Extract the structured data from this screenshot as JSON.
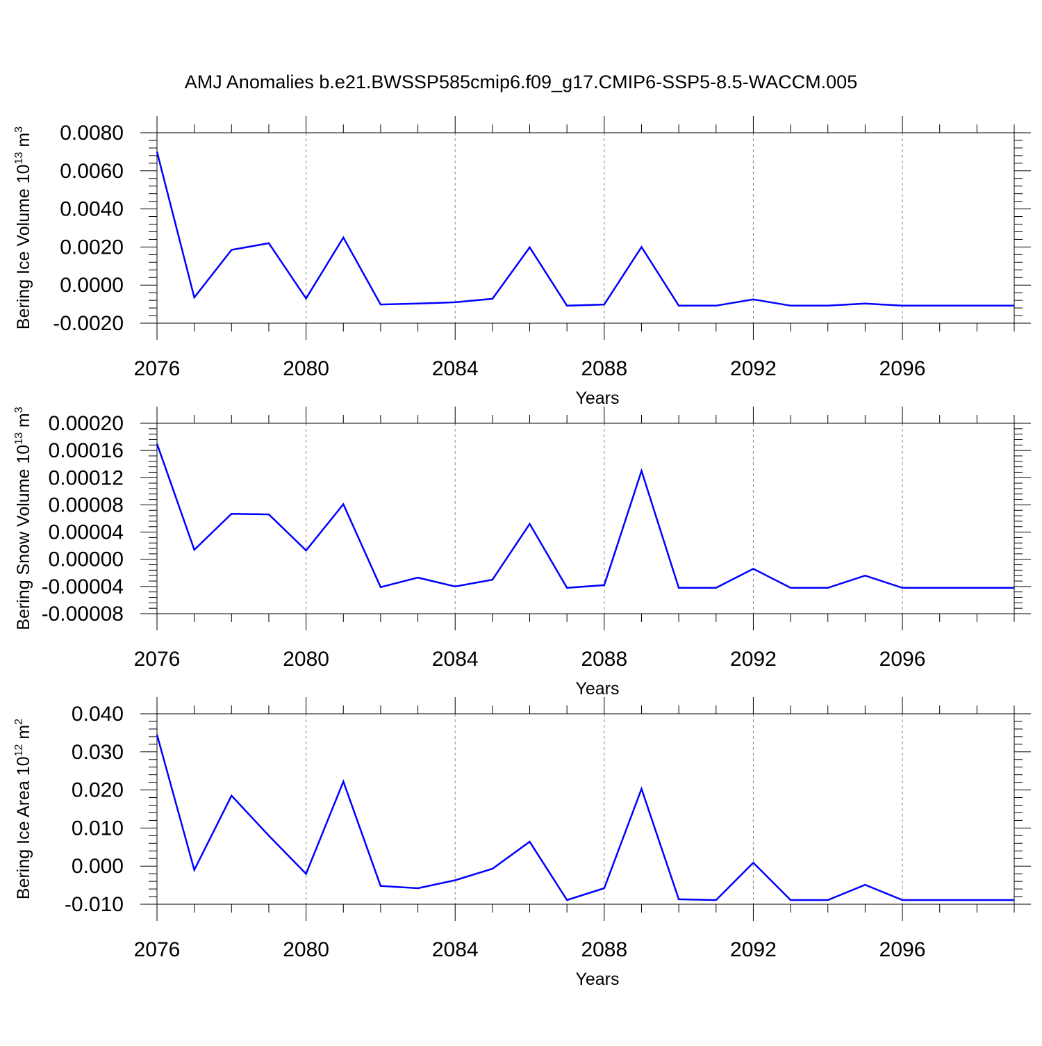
{
  "title": "AMJ Anomalies b.e21.BWSSP585cmip6.f09_g17.CMIP6-SSP5-8.5-WACCM.005",
  "line_color": "#0000ff",
  "chart_data": [
    {
      "type": "line",
      "ylabel": "Bering Ice Volume 10",
      "ylabel_exp": "13",
      "ylabel_unit": " m",
      "ylabel_unit_exp": "3",
      "xlabel": "Years",
      "xlim": [
        2076,
        2099
      ],
      "ylim": [
        -0.002,
        0.008
      ],
      "x_ticks": [
        2076,
        2080,
        2084,
        2088,
        2092,
        2096
      ],
      "y_ticks": [
        "0.0080",
        "0.0060",
        "0.0040",
        "0.0020",
        "0.0000",
        "-0.0020"
      ],
      "x": [
        2076,
        2077,
        2078,
        2079,
        2080,
        2081,
        2082,
        2083,
        2084,
        2085,
        2086,
        2087,
        2088,
        2089,
        2090,
        2091,
        2092,
        2093,
        2094,
        2095,
        2096,
        2097,
        2098,
        2099
      ],
      "values": [
        0.007,
        -0.00065,
        0.00185,
        0.0022,
        -0.0007,
        0.0025,
        -0.00102,
        -0.00097,
        -0.0009,
        -0.00072,
        0.00198,
        -0.00108,
        -0.00102,
        0.002,
        -0.00108,
        -0.00108,
        -0.00075,
        -0.00108,
        -0.00108,
        -0.00097,
        -0.00108,
        -0.00108,
        -0.00108,
        -0.00108
      ]
    },
    {
      "type": "line",
      "ylabel": "Bering Snow Volume 10",
      "ylabel_exp": "13",
      "ylabel_unit": " m",
      "ylabel_unit_exp": "3",
      "xlabel": "Years",
      "xlim": [
        2076,
        2099
      ],
      "ylim": [
        -8e-05,
        0.0002
      ],
      "x_ticks": [
        2076,
        2080,
        2084,
        2088,
        2092,
        2096
      ],
      "y_ticks": [
        "0.00020",
        "0.00016",
        "0.00012",
        "0.00008",
        "0.00004",
        "0.00000",
        "-0.00004",
        "-0.00008"
      ],
      "x": [
        2076,
        2077,
        2078,
        2079,
        2080,
        2081,
        2082,
        2083,
        2084,
        2085,
        2086,
        2087,
        2088,
        2089,
        2090,
        2091,
        2092,
        2093,
        2094,
        2095,
        2096,
        2097,
        2098,
        2099
      ],
      "values": [
        0.00017,
        1.4e-05,
        6.7e-05,
        6.6e-05,
        1.3e-05,
        8.1e-05,
        -4.1e-05,
        -2.7e-05,
        -4e-05,
        -3e-05,
        5.2e-05,
        -4.2e-05,
        -3.8e-05,
        0.00013,
        -4.2e-05,
        -4.2e-05,
        -1.4e-05,
        -4.2e-05,
        -4.2e-05,
        -2.4e-05,
        -4.2e-05,
        -4.2e-05,
        -4.2e-05,
        -4.2e-05
      ]
    },
    {
      "type": "line",
      "ylabel": "Bering Ice Area 10",
      "ylabel_exp": "12",
      "ylabel_unit": " m",
      "ylabel_unit_exp": "2",
      "xlabel": "Years",
      "xlim": [
        2076,
        2099
      ],
      "ylim": [
        -0.01,
        0.04
      ],
      "x_ticks": [
        2076,
        2080,
        2084,
        2088,
        2092,
        2096
      ],
      "y_ticks": [
        "0.040",
        "0.030",
        "0.020",
        "0.010",
        "0.000",
        "-0.010"
      ],
      "x": [
        2076,
        2077,
        2078,
        2079,
        2080,
        2081,
        2082,
        2083,
        2084,
        2085,
        2086,
        2087,
        2088,
        2089,
        2090,
        2091,
        2092,
        2093,
        2094,
        2095,
        2096,
        2097,
        2098,
        2099
      ],
      "values": [
        0.0345,
        -0.001,
        0.0185,
        0.008,
        -0.002,
        0.0222,
        -0.0052,
        -0.0058,
        -0.0037,
        -0.0007,
        0.0064,
        -0.0089,
        -0.0058,
        0.0203,
        -0.0087,
        -0.0089,
        0.0009,
        -0.0089,
        -0.0089,
        -0.0049,
        -0.0089,
        -0.0089,
        -0.0089,
        -0.0089
      ]
    }
  ]
}
